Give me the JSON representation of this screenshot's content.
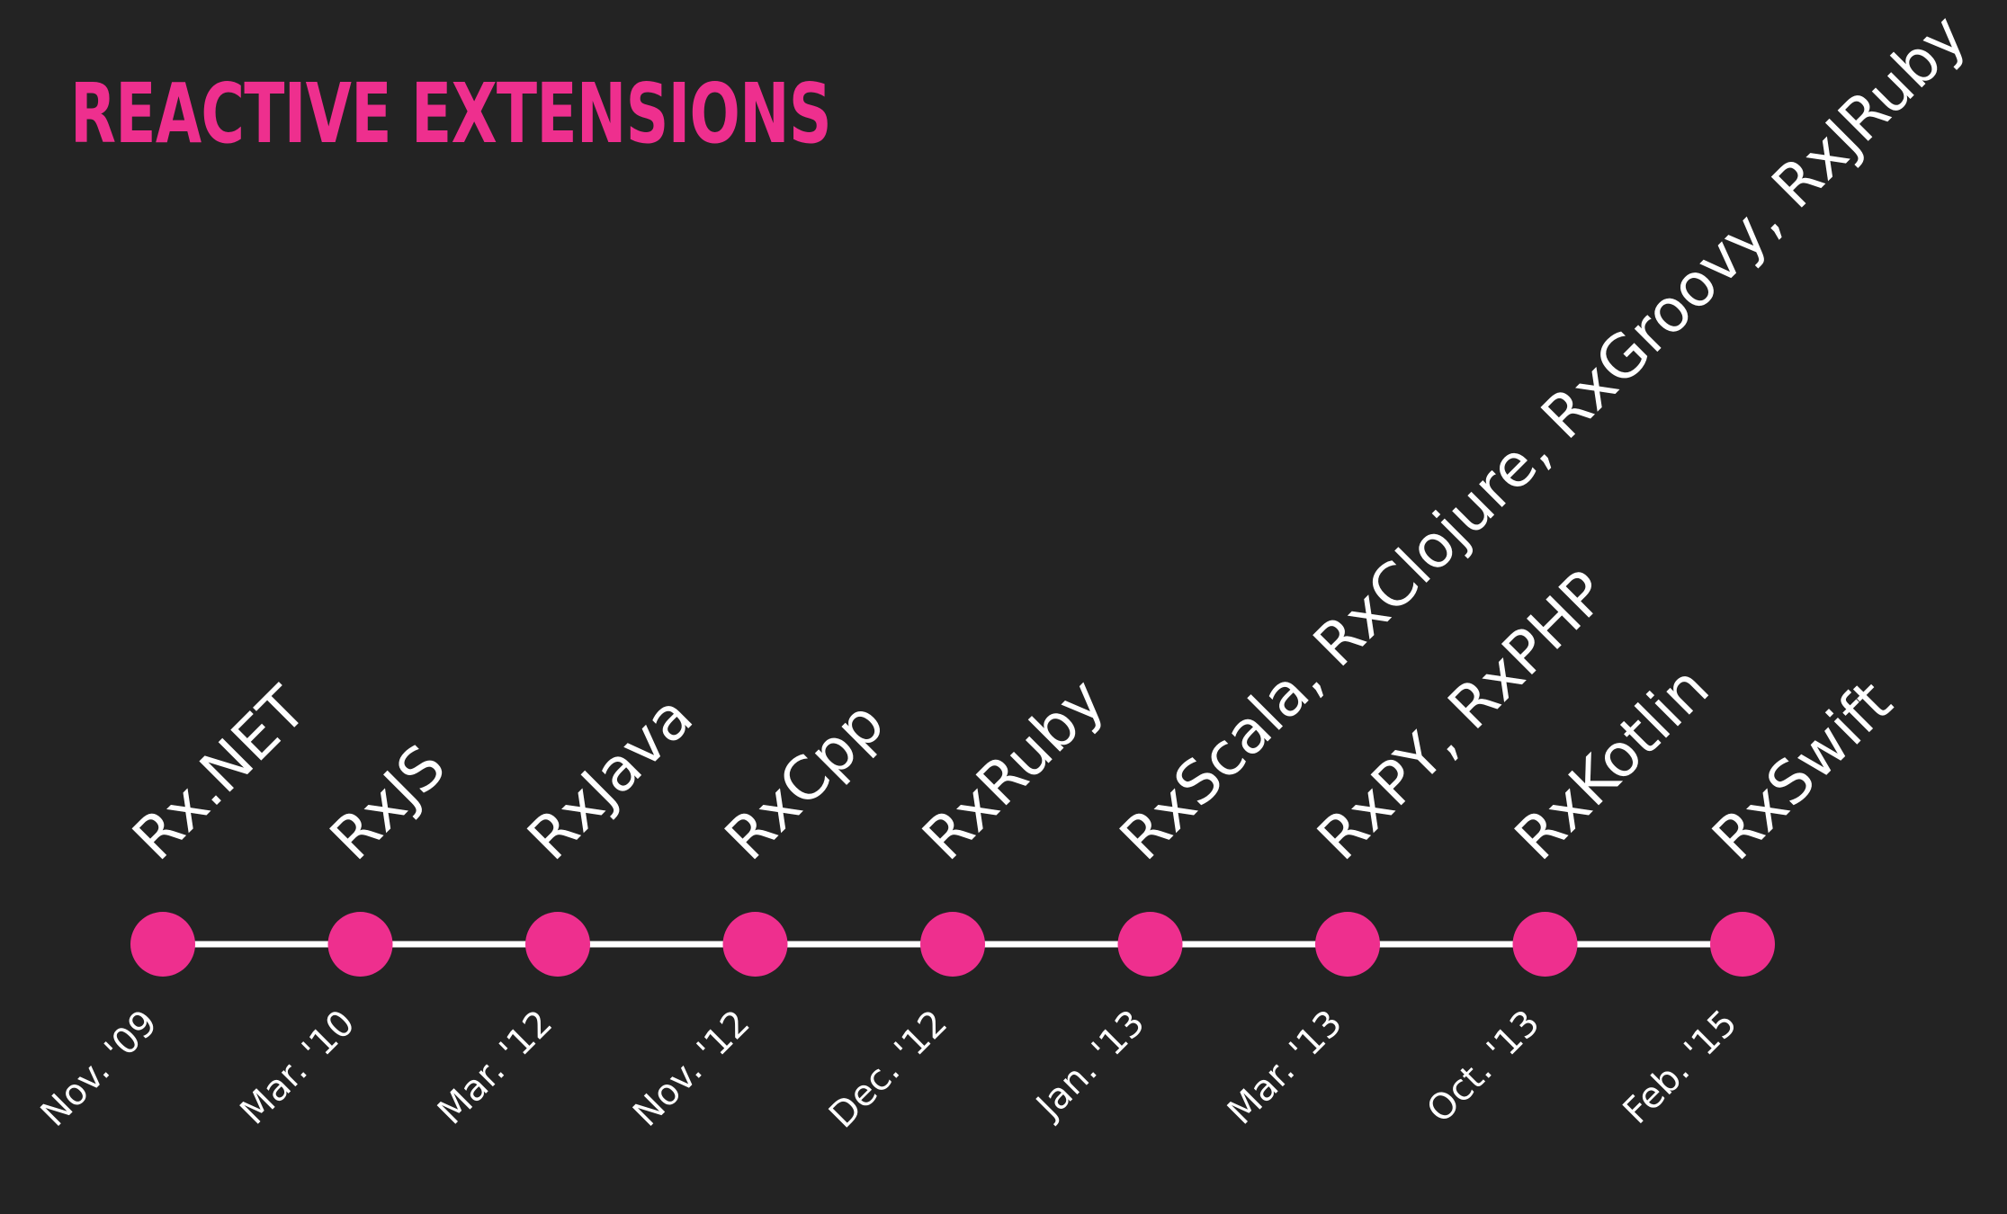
{
  "slide": {
    "title": "REACTIVE EXTENSIONS"
  },
  "colors": {
    "background": "#232323",
    "accent": "#ee2f8e",
    "line": "#ffffff",
    "text": "#ffffff"
  },
  "timeline": {
    "events": [
      {
        "label": "Rx.NET",
        "date": "Nov. '09"
      },
      {
        "label": "RxJS",
        "date": "Mar. '10"
      },
      {
        "label": "RxJava",
        "date": "Mar. '12"
      },
      {
        "label": "RxCpp",
        "date": "Nov. '12"
      },
      {
        "label": "RxRuby",
        "date": "Dec. '12"
      },
      {
        "label": "RxScala, RxClojure, RxGroovy, RxJRuby",
        "date": "Jan. '13"
      },
      {
        "label": "RxPY, RxPHP",
        "date": "Mar. '13"
      },
      {
        "label": "RxKotlin",
        "date": "Oct. '13"
      },
      {
        "label": "RxSwift",
        "date": "Feb. '15"
      }
    ]
  }
}
